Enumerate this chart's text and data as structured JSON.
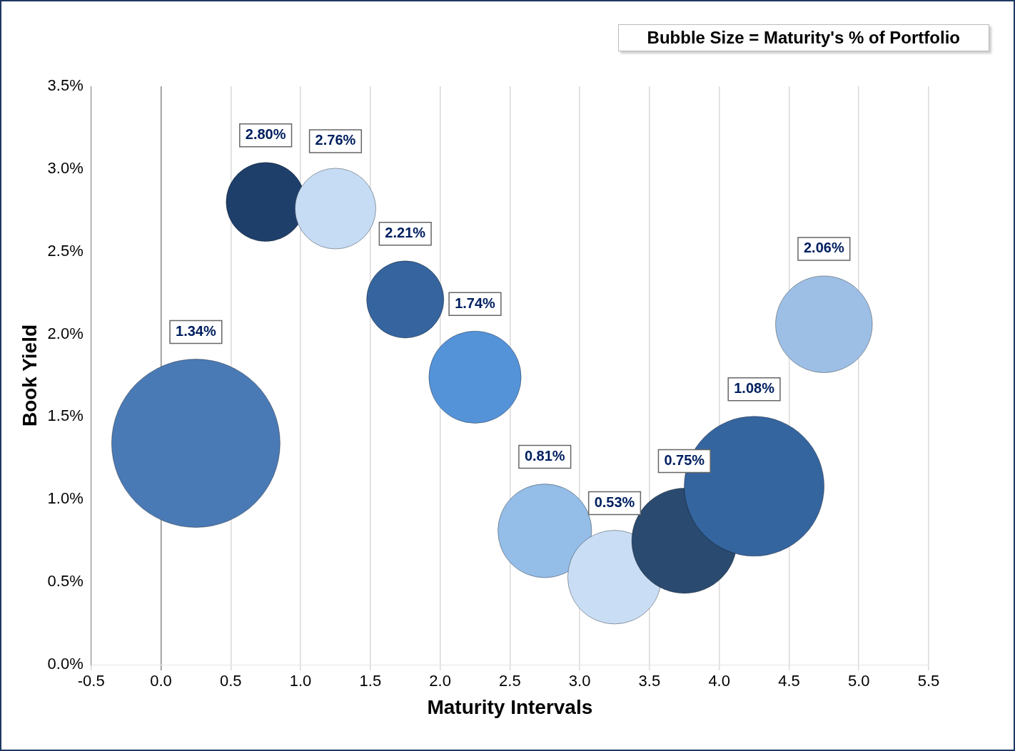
{
  "chart_data": {
    "type": "bubble",
    "xlabel": "Maturity Intervals",
    "ylabel": "Book Yield",
    "annotations": [
      "Bubble Size = Maturity's % of Portfolio"
    ],
    "x": [
      0.25,
      0.75,
      1.25,
      1.75,
      2.25,
      2.75,
      3.25,
      3.75,
      4.25,
      4.75
    ],
    "values": [
      1.34,
      2.8,
      2.76,
      2.21,
      1.74,
      0.81,
      0.53,
      0.75,
      1.08,
      2.06
    ],
    "sizes": [
      1,
      0.22,
      0.23,
      0.21,
      0.3,
      0.31,
      0.31,
      0.39,
      0.69,
      0.33
    ],
    "colors": [
      "#4a7ab5",
      "#1f3f6b",
      "#c6dcf5",
      "#35649e",
      "#5593d9",
      "#94bde8",
      "#c9def5",
      "#2a4a70",
      "#35659f",
      "#9dbfe6"
    ],
    "value_labels": [
      "1.34%",
      "2.80%",
      "2.76%",
      "2.21%",
      "1.74%",
      "0.81%",
      "0.53%",
      "0.75%",
      "1.08%",
      "2.06%"
    ],
    "xlim": [
      -0.5,
      5.5
    ],
    "xticks": [
      -0.5,
      {
        "value": 0,
        "label": "0.0"
      },
      0.5,
      {
        "value": 1,
        "label": "1.0"
      },
      1.5,
      {
        "value": 2,
        "label": "2.0"
      },
      2.5,
      {
        "value": 3,
        "label": "3.0"
      },
      3.5,
      {
        "value": 4,
        "label": "4.0"
      },
      4.5,
      {
        "value": 5,
        "label": "5.0"
      },
      5.5
    ],
    "ylim": [
      0,
      3.5
    ],
    "yticks": [
      {
        "value": 0,
        "label": "0.0%"
      },
      {
        "value": 0.5,
        "label": "0.5%"
      },
      {
        "value": 1,
        "label": "1.0%"
      },
      {
        "value": 1.5,
        "label": "1.5%"
      },
      {
        "value": 2,
        "label": "2.0%"
      },
      {
        "value": 2.5,
        "label": "2.5%"
      },
      {
        "value": 3,
        "label": "3.0%"
      },
      {
        "value": 3.5,
        "label": "3.5%"
      }
    ],
    "grid": "x",
    "legend": false
  }
}
